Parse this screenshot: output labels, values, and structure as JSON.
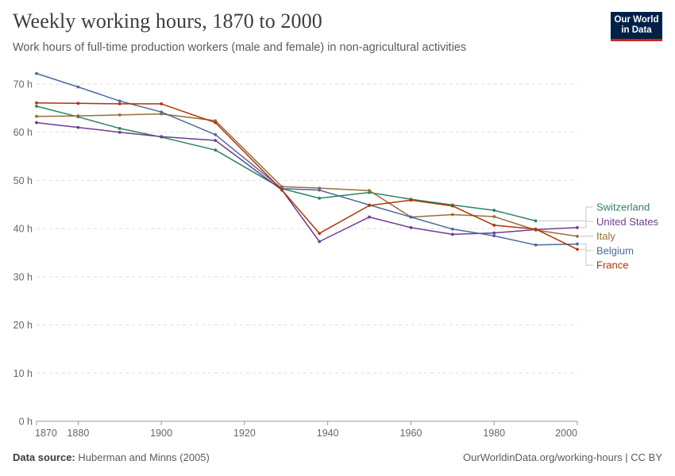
{
  "header": {
    "title": "Weekly working hours, 1870 to 2000",
    "subtitle": "Work hours of full-time production workers (male and female) in non-agricultural activities",
    "logo_line1": "Our World",
    "logo_line2": "in Data"
  },
  "footer": {
    "source_label": "Data source:",
    "source_text": "Huberman and Minns (2005)",
    "url_text": "OurWorldinData.org/working-hours | CC BY"
  },
  "chart_data": {
    "type": "line",
    "title": "Weekly working hours, 1870 to 2000",
    "subtitle": "Work hours of full-time production workers (male and female) in non-agricultural activities",
    "xlim": [
      1870,
      2000
    ],
    "ylim": [
      0,
      70
    ],
    "x_ticks": [
      1870,
      1880,
      1900,
      1920,
      1940,
      1960,
      1980,
      2000
    ],
    "x_tick_labels": [
      "1870",
      "1880",
      "1900",
      "1920",
      "1940",
      "1960",
      "1980",
      "2000"
    ],
    "y_ticks": [
      0,
      10,
      20,
      30,
      40,
      50,
      60,
      70
    ],
    "y_tick_labels": [
      "0 h",
      "10 h",
      "20 h",
      "30 h",
      "40 h",
      "50 h",
      "60 h",
      "70 h"
    ],
    "grid": "horizontal dashed",
    "legend": "right (labels at line ends)",
    "series": [
      {
        "name": "Switzerland",
        "color": "#2c8465",
        "x": [
          1870,
          1880,
          1890,
          1900,
          1913,
          1929,
          1938,
          1950,
          1960,
          1970,
          1980,
          1990
        ],
        "y": [
          65.4,
          63.2,
          60.8,
          59.0,
          56.3,
          48.3,
          46.3,
          47.5,
          46.1,
          44.9,
          43.8,
          41.6
        ]
      },
      {
        "name": "United States",
        "color": "#6d3e91",
        "x": [
          1870,
          1880,
          1890,
          1900,
          1913,
          1929,
          1938,
          1950,
          1960,
          1970,
          1980,
          1990,
          2000
        ],
        "y": [
          62.0,
          61.0,
          60.0,
          59.1,
          58.3,
          48.0,
          37.3,
          42.4,
          40.2,
          38.8,
          39.1,
          39.8,
          40.2
        ]
      },
      {
        "name": "Italy",
        "color": "#996d39",
        "x": [
          1870,
          1880,
          1890,
          1900,
          1913,
          1929,
          1938,
          1950,
          1960,
          1970,
          1980,
          1990,
          2000
        ],
        "y": [
          63.3,
          63.4,
          63.6,
          63.8,
          62.4,
          48.7,
          48.4,
          47.9,
          42.4,
          42.9,
          42.5,
          39.7,
          38.4
        ]
      },
      {
        "name": "Belgium",
        "color": "#4c6a9c",
        "x": [
          1870,
          1880,
          1890,
          1900,
          1913,
          1929,
          1938,
          1950,
          1960,
          1970,
          1980,
          1990,
          2000
        ],
        "y": [
          72.2,
          69.4,
          66.5,
          64.2,
          59.5,
          48.3,
          48.0,
          44.9,
          42.4,
          39.9,
          38.5,
          36.6,
          36.8
        ]
      },
      {
        "name": "France",
        "color": "#b13507",
        "x": [
          1870,
          1880,
          1890,
          1900,
          1913,
          1929,
          1938,
          1950,
          1960,
          1970,
          1980,
          1990,
          2000
        ],
        "y": [
          66.1,
          66.0,
          65.9,
          65.9,
          62.0,
          48.0,
          39.0,
          44.8,
          45.9,
          44.7,
          40.7,
          39.9,
          35.7
        ]
      }
    ]
  }
}
